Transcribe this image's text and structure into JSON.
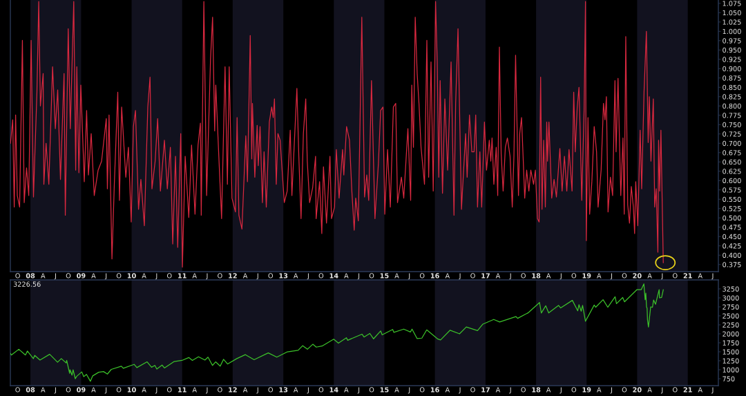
{
  "chart_data": [
    {
      "type": "line",
      "series": [
        {
          "color": "#d8283f",
          "x": [
            "2007-08-10",
            "2007-08-26",
            "2007-09-06",
            "2007-09-16",
            "2007-09-28",
            "2007-10-15",
            "2007-11-04",
            "2007-11-17",
            "2007-12-04",
            "2007-12-20",
            "2008-01-06",
            "2008-01-23",
            "2008-02-17",
            "2008-03-01",
            "2008-03-13",
            "2008-04-02",
            "2008-04-07",
            "2008-04-23",
            "2008-05-13",
            "2008-06-09",
            "2008-06-29",
            "2008-07-16",
            "2008-08-05",
            "2008-08-31",
            "2008-09-09",
            "2008-09-30",
            "2008-10-15",
            "2008-11-09",
            "2008-11-23",
            "2008-12-01",
            "2008-12-16",
            "2008-12-30",
            "2009-01-24",
            "2009-02-10",
            "2009-02-23",
            "2009-03-15",
            "2009-04-06",
            "2009-05-04",
            "2009-05-29",
            "2009-07-02",
            "2009-07-10",
            "2009-07-22",
            "2009-08-12",
            "2009-08-29",
            "2009-09-23",
            "2009-10-05",
            "2009-10-21",
            "2009-11-20",
            "2009-12-09",
            "2009-12-29",
            "2010-01-14",
            "2010-01-29",
            "2010-02-20",
            "2010-03-09",
            "2010-04-03",
            "2010-04-28",
            "2010-05-14",
            "2010-05-28",
            "2010-06-20",
            "2010-07-08",
            "2010-07-28",
            "2010-08-26",
            "2010-09-16",
            "2010-10-08",
            "2010-10-25",
            "2010-11-14",
            "2010-11-30",
            "2010-12-22",
            "2011-01-03",
            "2011-01-23",
            "2011-02-18",
            "2011-03-10",
            "2011-04-04",
            "2011-04-26",
            "2011-05-13",
            "2011-05-19",
            "2011-06-07",
            "2011-06-27",
            "2011-07-25",
            "2011-08-09",
            "2011-08-24",
            "2011-09-01",
            "2011-09-23",
            "2011-10-13",
            "2011-11-07",
            "2011-11-24",
            "2011-12-07",
            "2011-12-27",
            "2012-01-21",
            "2012-02-02",
            "2012-02-15",
            "2012-03-08",
            "2012-04-05",
            "2012-04-17",
            "2012-05-07",
            "2012-05-18",
            "2012-05-23",
            "2012-06-09",
            "2012-06-26",
            "2012-07-04",
            "2012-07-17",
            "2012-08-03",
            "2012-08-15",
            "2012-08-31",
            "2012-09-22",
            "2012-10-09",
            "2012-10-20",
            "2012-10-29",
            "2012-11-11",
            "2012-11-23",
            "2012-12-09",
            "2013-01-08",
            "2013-01-29",
            "2013-02-20",
            "2013-03-04",
            "2013-03-20",
            "2013-04-09",
            "2013-04-23",
            "2013-05-09",
            "2013-05-26",
            "2013-06-12",
            "2013-06-23",
            "2013-07-10",
            "2013-08-01",
            "2013-08-22",
            "2013-08-26",
            "2013-09-20",
            "2013-10-06",
            "2013-10-18",
            "2013-11-09",
            "2013-12-04",
            "2013-12-15",
            "2014-01-06",
            "2014-01-19",
            "2014-02-08",
            "2014-03-05",
            "2014-03-14",
            "2014-04-03",
            "2014-04-24",
            "2014-05-11",
            "2014-05-28",
            "2014-06-08",
            "2014-06-27",
            "2014-07-22",
            "2014-08-11",
            "2014-08-27",
            "2014-09-10",
            "2014-09-30",
            "2014-10-25",
            "2014-11-19",
            "2014-12-05",
            "2014-12-22",
            "2015-01-04",
            "2015-01-24",
            "2015-02-13",
            "2015-03-07",
            "2015-03-24",
            "2015-04-06",
            "2015-05-04",
            "2015-05-21",
            "2015-06-20",
            "2015-07-10",
            "2015-07-18",
            "2015-07-30",
            "2015-08-12",
            "2015-08-26",
            "2015-09-08",
            "2015-09-23",
            "2015-10-18",
            "2015-11-04",
            "2015-11-17",
            "2015-12-04",
            "2015-12-20",
            "2016-01-06",
            "2016-01-18",
            "2016-01-29",
            "2016-02-08",
            "2016-02-25",
            "2016-03-13",
            "2016-04-02",
            "2016-04-27",
            "2016-05-18",
            "2016-05-30",
            "2016-06-16",
            "2016-07-11",
            "2016-08-10",
            "2016-08-21",
            "2016-09-07",
            "2016-09-24",
            "2016-10-10",
            "2016-10-22",
            "2016-11-04",
            "2016-11-21",
            "2016-12-04",
            "2016-12-24",
            "2017-01-08",
            "2017-01-28",
            "2017-02-08",
            "2017-02-17",
            "2017-03-02",
            "2017-03-19",
            "2017-03-30",
            "2017-04-11",
            "2017-04-24",
            "2017-05-08",
            "2017-05-24",
            "2017-06-08",
            "2017-06-27",
            "2017-07-13",
            "2017-07-25",
            "2017-08-06",
            "2017-08-27",
            "2017-09-05",
            "2017-09-18",
            "2017-09-30",
            "2017-10-11",
            "2017-10-25",
            "2017-11-10",
            "2017-11-24",
            "2017-12-14",
            "2017-12-27",
            "2018-01-11",
            "2018-01-23",
            "2018-02-03",
            "2018-02-13",
            "2018-02-25",
            "2018-03-09",
            "2018-03-19",
            "2018-03-25",
            "2018-04-04",
            "2018-04-24",
            "2018-05-11",
            "2018-05-28",
            "2018-06-22",
            "2018-07-08",
            "2018-07-25",
            "2018-08-11",
            "2018-08-27",
            "2018-09-18",
            "2018-09-30",
            "2018-10-11",
            "2018-10-25",
            "2018-11-07",
            "2018-11-15",
            "2018-11-27",
            "2018-12-14",
            "2018-12-24",
            "2018-12-30",
            "2019-01-11",
            "2019-01-23",
            "2019-02-08",
            "2019-02-25",
            "2019-03-14",
            "2019-03-25",
            "2019-04-16",
            "2019-05-03",
            "2019-05-14",
            "2019-05-24",
            "2019-06-05",
            "2019-06-22",
            "2019-07-08",
            "2019-07-25",
            "2019-08-02",
            "2019-08-16",
            "2019-09-05",
            "2019-09-21",
            "2019-09-30",
            "2019-10-11",
            "2019-10-25",
            "2019-11-07",
            "2019-11-20",
            "2019-12-05",
            "2019-12-14",
            "2019-12-22",
            "2020-01-06",
            "2020-01-23",
            "2020-02-03",
            "2020-02-20",
            "2020-03-08",
            "2020-03-21",
            "2020-03-29",
            "2020-04-10",
            "2020-04-27",
            "2020-05-07",
            "2020-05-18",
            "2020-05-30",
            "2020-06-04",
            "2020-06-12",
            "2020-06-21",
            "2020-07-08"
          ],
          "values": [
            0.7,
            0.763,
            0.529,
            0.776,
            0.56,
            0.529,
            0.976,
            0.541,
            0.634,
            0.56,
            0.976,
            0.556,
            0.837,
            1.08,
            0.8,
            0.887,
            0.59,
            0.7,
            0.59,
            0.905,
            0.739,
            0.843,
            0.603,
            0.887,
            0.507,
            1.007,
            0.739,
            1.08,
            0.628,
            0.905,
            0.621,
            0.856,
            0.597,
            0.788,
            0.615,
            0.726,
            0.56,
            0.628,
            0.652,
            0.766,
            0.578,
            0.776,
            0.39,
            0.59,
            0.837,
            0.547,
            0.797,
            0.609,
            0.689,
            0.489,
            0.745,
            0.788,
            0.523,
            0.603,
            0.479,
            0.797,
            0.877,
            0.578,
            0.652,
            0.766,
            0.572,
            0.708,
            0.578,
            0.689,
            0.43,
            0.665,
            0.421,
            0.726,
            0.368,
            0.665,
            0.501,
            0.695,
            0.51,
            0.695,
            0.754,
            0.507,
            1.08,
            0.56,
            0.924,
            1.038,
            0.733,
            0.856,
            0.665,
            0.498,
            0.905,
            0.59,
            0.905,
            0.553,
            0.516,
            0.769,
            0.507,
            0.47,
            0.72,
            0.597,
            0.989,
            0.658,
            0.807,
            0.609,
            0.748,
            0.64,
            0.745,
            0.541,
            0.677,
            0.529,
            0.757,
            0.797,
            0.769,
            0.819,
            0.59,
            0.726,
            0.708,
            0.541,
            0.572,
            0.735,
            0.56,
            0.689,
            0.847,
            0.665,
            0.498,
            0.726,
            0.819,
            0.652,
            0.541,
            0.581,
            0.665,
            0.498,
            0.597,
            0.458,
            0.637,
            0.486,
            0.665,
            0.498,
            0.529,
            0.683,
            0.553,
            0.683,
            0.615,
            0.745,
            0.708,
            0.572,
            0.467,
            0.553,
            0.492,
            1.038,
            0.556,
            0.615,
            0.547,
            0.868,
            0.498,
            0.646,
            0.788,
            0.797,
            0.51,
            0.683,
            0.529,
            0.797,
            0.807,
            0.541,
            0.609,
            0.553,
            0.739,
            0.547,
            0.856,
            0.689,
            1.038,
            0.887,
            0.807,
            0.689,
            0.59,
            0.976,
            0.609,
            0.918,
            0.572,
            1.08,
            0.918,
            0.609,
            0.868,
            0.566,
            0.819,
            0.628,
            0.918,
            0.507,
            0.807,
            1.007,
            0.523,
            0.726,
            0.609,
            0.776,
            0.677,
            0.677,
            0.776,
            0.529,
            0.677,
            0.529,
            0.757,
            0.628,
            0.708,
            0.652,
            0.714,
            0.59,
            0.689,
            0.56,
            0.958,
            0.671,
            0.572,
            0.689,
            0.714,
            0.665,
            0.529,
            0.665,
            0.936,
            0.56,
            0.726,
            0.769,
            0.658,
            0.553,
            0.628,
            0.572,
            0.628,
            0.59,
            0.628,
            0.498,
            0.489,
            0.877,
            0.523,
            0.708,
            0.529,
            0.757,
            0.652,
            0.757,
            0.553,
            0.603,
            0.556,
            0.686,
            0.572,
            0.665,
            0.572,
            0.683,
            0.572,
            0.837,
            0.677,
            0.794,
            0.85,
            0.739,
            0.547,
            0.788,
            1.08,
            0.439,
            0.769,
            0.51,
            0.597,
            0.745,
            0.677,
            0.529,
            0.628,
            0.807,
            0.763,
            0.825,
            0.516,
            0.609,
            0.56,
            0.868,
            0.677,
            0.874,
            0.56,
            0.714,
            0.51,
            0.986,
            0.535,
            0.486,
            0.584,
            0.529,
            0.458,
            0.597,
            0.479,
            0.735,
            0.578,
            0.837,
            1.0,
            0.702,
            0.825,
            0.652,
            0.819,
            0.529,
            0.578,
            0.408,
            0.708,
            0.572,
            0.735,
            0.38
          ]
        }
      ],
      "xlim": [
        "2007-08-09",
        "2021-08-10"
      ],
      "xticks": [
        {
          "value": "2007-10",
          "label": "O"
        },
        {
          "value": "2008-01",
          "label": "08"
        },
        {
          "value": "2008-04",
          "label": "A"
        },
        {
          "value": "2008-07",
          "label": "J"
        },
        {
          "value": "2008-10",
          "label": "O"
        },
        {
          "value": "2009-01",
          "label": "09"
        },
        {
          "value": "2009-04",
          "label": "A"
        },
        {
          "value": "2009-07",
          "label": "J"
        },
        {
          "value": "2009-10",
          "label": "O"
        },
        {
          "value": "2010-01",
          "label": "10"
        },
        {
          "value": "2010-04",
          "label": "A"
        },
        {
          "value": "2010-07",
          "label": "J"
        },
        {
          "value": "2010-10",
          "label": "O"
        },
        {
          "value": "2011-01",
          "label": "11"
        },
        {
          "value": "2011-04",
          "label": "A"
        },
        {
          "value": "2011-07",
          "label": "J"
        },
        {
          "value": "2011-10",
          "label": "O"
        },
        {
          "value": "2012-01",
          "label": "12"
        },
        {
          "value": "2012-04",
          "label": "A"
        },
        {
          "value": "2012-07",
          "label": "J"
        },
        {
          "value": "2012-10",
          "label": "O"
        },
        {
          "value": "2013-01",
          "label": "13"
        },
        {
          "value": "2013-04",
          "label": "A"
        },
        {
          "value": "2013-07",
          "label": "J"
        },
        {
          "value": "2013-10",
          "label": "O"
        },
        {
          "value": "2014-01",
          "label": "14"
        },
        {
          "value": "2014-04",
          "label": "A"
        },
        {
          "value": "2014-07",
          "label": "J"
        },
        {
          "value": "2014-10",
          "label": "O"
        },
        {
          "value": "2015-01",
          "label": "15"
        },
        {
          "value": "2015-04",
          "label": "A"
        },
        {
          "value": "2015-07",
          "label": "J"
        },
        {
          "value": "2015-10",
          "label": "O"
        },
        {
          "value": "2016-01",
          "label": "16"
        },
        {
          "value": "2016-04",
          "label": "A"
        },
        {
          "value": "2016-07",
          "label": "J"
        },
        {
          "value": "2016-10",
          "label": "O"
        },
        {
          "value": "2017-01",
          "label": "17"
        },
        {
          "value": "2017-04",
          "label": "A"
        },
        {
          "value": "2017-07",
          "label": "J"
        },
        {
          "value": "2017-10",
          "label": "O"
        },
        {
          "value": "2018-01",
          "label": "18"
        },
        {
          "value": "2018-04",
          "label": "A"
        },
        {
          "value": "2018-07",
          "label": "J"
        },
        {
          "value": "2018-10",
          "label": "O"
        },
        {
          "value": "2019-01",
          "label": "19"
        },
        {
          "value": "2019-04",
          "label": "A"
        },
        {
          "value": "2019-07",
          "label": "J"
        },
        {
          "value": "2019-10",
          "label": "O"
        },
        {
          "value": "2020-01",
          "label": "20"
        },
        {
          "value": "2020-04",
          "label": "A"
        },
        {
          "value": "2020-07",
          "label": "J"
        },
        {
          "value": "2020-10",
          "label": "O"
        },
        {
          "value": "2021-01",
          "label": "21"
        },
        {
          "value": "2021-04",
          "label": "A"
        },
        {
          "value": "2021-07",
          "label": "J"
        }
      ],
      "ylim": [
        0.356,
        1.084
      ],
      "yticks": [
        0.375,
        {
          "value": 0.4,
          "label": "0.400"
        },
        0.425,
        {
          "value": 0.45,
          "label": "0.450"
        },
        0.475,
        {
          "value": 0.5,
          "label": "0.500"
        },
        0.525,
        {
          "value": 0.55,
          "label": "0.550"
        },
        0.575,
        {
          "value": 0.6,
          "label": "0.600"
        },
        0.625,
        {
          "value": 0.65,
          "label": "0.650"
        },
        0.675,
        {
          "value": 0.7,
          "label": "0.700"
        },
        0.725,
        {
          "value": 0.75,
          "label": "0.750"
        },
        0.775,
        {
          "value": 0.8,
          "label": "0.800"
        },
        0.825,
        {
          "value": 0.85,
          "label": "0.850"
        },
        0.875,
        {
          "value": 0.9,
          "label": "0.900"
        },
        0.925,
        {
          "value": 0.95,
          "label": "0.950"
        },
        0.975,
        {
          "value": 1.0,
          "label": "1.000"
        },
        1.025,
        {
          "value": 1.05,
          "label": "1.050"
        },
        1.075
      ],
      "bands": [
        {
          "axis": "x",
          "from": "2008-01-01",
          "to": "2009-01-01",
          "color": "#12121f"
        },
        {
          "axis": "x",
          "from": "2010-01-01",
          "to": "2011-01-01",
          "color": "#12121f"
        },
        {
          "axis": "x",
          "from": "2012-01-01",
          "to": "2013-01-01",
          "color": "#12121f"
        },
        {
          "axis": "x",
          "from": "2014-01-01",
          "to": "2015-01-01",
          "color": "#12121f"
        },
        {
          "axis": "x",
          "from": "2016-01-01",
          "to": "2017-01-01",
          "color": "#12121f"
        },
        {
          "axis": "x",
          "from": "2018-01-01",
          "to": "2019-01-01",
          "color": "#12121f"
        },
        {
          "axis": "x",
          "from": "2020-01-01",
          "to": "2021-01-01",
          "color": "#12121f"
        }
      ]
    },
    {
      "type": "line",
      "series": [
        {
          "color": "#3cc12a",
          "x": [
            "2007-08-10",
            "2007-08-16",
            "2007-10-09",
            "2007-11-26",
            "2007-12-10",
            "2008-01-22",
            "2008-02-01",
            "2008-03-10",
            "2008-05-19",
            "2008-07-15",
            "2008-08-11",
            "2008-09-15",
            "2008-09-19",
            "2008-10-10",
            "2008-10-13",
            "2008-10-27",
            "2008-11-04",
            "2008-11-20",
            "2008-12-01",
            "2009-01-06",
            "2009-01-20",
            "2009-02-09",
            "2009-03-09",
            "2009-03-26",
            "2009-05-08",
            "2009-06-12",
            "2009-07-10",
            "2009-08-07",
            "2009-10-19",
            "2009-11-02",
            "2010-01-19",
            "2010-02-08",
            "2010-04-23",
            "2010-05-25",
            "2010-06-18",
            "2010-07-02",
            "2010-08-09",
            "2010-08-26",
            "2010-11-05",
            "2010-12-31",
            "2011-02-18",
            "2011-03-16",
            "2011-04-29",
            "2011-06-15",
            "2011-07-07",
            "2011-08-08",
            "2011-08-31",
            "2011-10-03",
            "2011-10-27",
            "2011-11-25",
            "2012-01-31",
            "2012-04-02",
            "2012-06-04",
            "2012-09-14",
            "2012-11-15",
            "2013-01-31",
            "2013-04-18",
            "2013-05-21",
            "2013-06-24",
            "2013-08-02",
            "2013-08-27",
            "2013-10-08",
            "2013-12-31",
            "2014-02-03",
            "2014-04-02",
            "2014-04-11",
            "2014-07-24",
            "2014-08-07",
            "2014-09-18",
            "2014-10-15",
            "2014-12-05",
            "2014-12-16",
            "2015-03-02",
            "2015-03-11",
            "2015-05-21",
            "2015-07-08",
            "2015-07-20",
            "2015-08-25",
            "2015-09-29",
            "2015-11-03",
            "2016-01-20",
            "2016-02-11",
            "2016-04-20",
            "2016-06-27",
            "2016-08-15",
            "2016-11-04",
            "2016-12-13",
            "2017-03-01",
            "2017-04-13",
            "2017-08-08",
            "2017-08-21",
            "2017-11-07",
            "2018-01-26",
            "2018-02-08",
            "2018-03-12",
            "2018-04-02",
            "2018-06-12",
            "2018-06-28",
            "2018-09-20",
            "2018-10-29",
            "2018-11-07",
            "2018-11-23",
            "2018-12-03",
            "2018-12-24",
            "2019-02-25",
            "2019-03-08",
            "2019-04-30",
            "2019-06-03",
            "2019-07-26",
            "2019-08-05",
            "2019-09-19",
            "2019-10-02",
            "2019-12-31",
            "2020-01-31",
            "2020-02-19",
            "2020-02-28",
            "2020-03-04",
            "2020-03-09",
            "2020-03-13",
            "2020-03-16",
            "2020-03-23",
            "2020-04-08",
            "2020-04-21",
            "2020-04-29",
            "2020-05-13",
            "2020-06-08",
            "2020-06-11",
            "2020-06-26",
            "2020-07-08"
          ],
          "values": [
            1450,
            1410,
            1570,
            1410,
            1520,
            1310,
            1400,
            1270,
            1430,
            1210,
            1310,
            1190,
            1260,
            900,
            1000,
            850,
            1000,
            750,
            820,
            940,
            810,
            870,
            680,
            830,
            930,
            950,
            880,
            1010,
            1100,
            1040,
            1150,
            1060,
            1220,
            1070,
            1120,
            1020,
            1130,
            1050,
            1230,
            1260,
            1340,
            1260,
            1360,
            1270,
            1350,
            1120,
            1220,
            1100,
            1290,
            1160,
            1310,
            1420,
            1280,
            1470,
            1350,
            1500,
            1540,
            1670,
            1570,
            1710,
            1630,
            1660,
            1850,
            1740,
            1890,
            1820,
            1990,
            1910,
            2010,
            1860,
            2080,
            1970,
            2120,
            2040,
            2130,
            2050,
            2130,
            1870,
            1880,
            2110,
            1860,
            1830,
            2100,
            2000,
            2190,
            2090,
            2270,
            2400,
            2330,
            2480,
            2430,
            2590,
            2870,
            2580,
            2780,
            2580,
            2790,
            2720,
            2930,
            2640,
            2810,
            2630,
            2790,
            2350,
            2800,
            2740,
            2950,
            2740,
            3030,
            2840,
            3010,
            2890,
            3230,
            3230,
            3390,
            2950,
            3130,
            2750,
            2710,
            2390,
            2190,
            2750,
            2740,
            2940,
            2820,
            3230,
            3000,
            3010,
            3226.56
          ]
        }
      ],
      "xlim": [
        "2007-08-09",
        "2021-08-10"
      ],
      "xticks": [
        {
          "value": "2007-10",
          "label": "O"
        },
        {
          "value": "2008-01",
          "label": "08"
        },
        {
          "value": "2008-04",
          "label": "A"
        },
        {
          "value": "2008-07",
          "label": "J"
        },
        {
          "value": "2008-10",
          "label": "O"
        },
        {
          "value": "2009-01",
          "label": "09"
        },
        {
          "value": "2009-04",
          "label": "A"
        },
        {
          "value": "2009-07",
          "label": "J"
        },
        {
          "value": "2009-10",
          "label": "O"
        },
        {
          "value": "2010-01",
          "label": "10"
        },
        {
          "value": "2010-04",
          "label": "A"
        },
        {
          "value": "2010-07",
          "label": "J"
        },
        {
          "value": "2010-10",
          "label": "O"
        },
        {
          "value": "2011-01",
          "label": "11"
        },
        {
          "value": "2011-04",
          "label": "A"
        },
        {
          "value": "2011-07",
          "label": "J"
        },
        {
          "value": "2011-10",
          "label": "O"
        },
        {
          "value": "2012-01",
          "label": "12"
        },
        {
          "value": "2012-04",
          "label": "A"
        },
        {
          "value": "2012-07",
          "label": "J"
        },
        {
          "value": "2012-10",
          "label": "O"
        },
        {
          "value": "2013-01",
          "label": "13"
        },
        {
          "value": "2013-04",
          "label": "A"
        },
        {
          "value": "2013-07",
          "label": "J"
        },
        {
          "value": "2013-10",
          "label": "O"
        },
        {
          "value": "2014-01",
          "label": "14"
        },
        {
          "value": "2014-04",
          "label": "A"
        },
        {
          "value": "2014-07",
          "label": "J"
        },
        {
          "value": "2014-10",
          "label": "O"
        },
        {
          "value": "2015-01",
          "label": "15"
        },
        {
          "value": "2015-04",
          "label": "A"
        },
        {
          "value": "2015-07",
          "label": "J"
        },
        {
          "value": "2015-10",
          "label": "O"
        },
        {
          "value": "2016-01",
          "label": "16"
        },
        {
          "value": "2016-04",
          "label": "A"
        },
        {
          "value": "2016-07",
          "label": "J"
        },
        {
          "value": "2016-10",
          "label": "O"
        },
        {
          "value": "2017-01",
          "label": "17"
        },
        {
          "value": "2017-04",
          "label": "A"
        },
        {
          "value": "2017-07",
          "label": "J"
        },
        {
          "value": "2017-10",
          "label": "O"
        },
        {
          "value": "2018-01",
          "label": "18"
        },
        {
          "value": "2018-04",
          "label": "A"
        },
        {
          "value": "2018-07",
          "label": "J"
        },
        {
          "value": "2018-10",
          "label": "O"
        },
        {
          "value": "2019-01",
          "label": "19"
        },
        {
          "value": "2019-04",
          "label": "A"
        },
        {
          "value": "2019-07",
          "label": "J"
        },
        {
          "value": "2019-10",
          "label": "O"
        },
        {
          "value": "2020-01",
          "label": "20"
        },
        {
          "value": "2020-04",
          "label": "A"
        },
        {
          "value": "2020-07",
          "label": "J"
        },
        {
          "value": "2020-10",
          "label": "O"
        },
        {
          "value": "2021-01",
          "label": "21"
        },
        {
          "value": "2021-04",
          "label": "A"
        },
        {
          "value": "2021-07",
          "label": "J"
        }
      ],
      "ylim": [
        558,
        3500
      ],
      "yticks": [
        750,
        1000,
        1250,
        1500,
        1750,
        2000,
        2250,
        2500,
        2750,
        3000,
        3250
      ],
      "bands": [
        {
          "axis": "x",
          "from": "2008-01-01",
          "to": "2009-01-01",
          "color": "#12121f"
        },
        {
          "axis": "x",
          "from": "2010-01-01",
          "to": "2011-01-01",
          "color": "#12121f"
        },
        {
          "axis": "x",
          "from": "2012-01-01",
          "to": "2013-01-01",
          "color": "#12121f"
        },
        {
          "axis": "x",
          "from": "2014-01-01",
          "to": "2015-01-01",
          "color": "#12121f"
        },
        {
          "axis": "x",
          "from": "2016-01-01",
          "to": "2017-01-01",
          "color": "#12121f"
        },
        {
          "axis": "x",
          "from": "2018-01-01",
          "to": "2019-01-01",
          "color": "#12121f"
        },
        {
          "axis": "x",
          "from": "2020-01-01",
          "to": "2021-01-01",
          "color": "#12121f"
        }
      ],
      "annotations": [
        "3226.56"
      ]
    }
  ]
}
